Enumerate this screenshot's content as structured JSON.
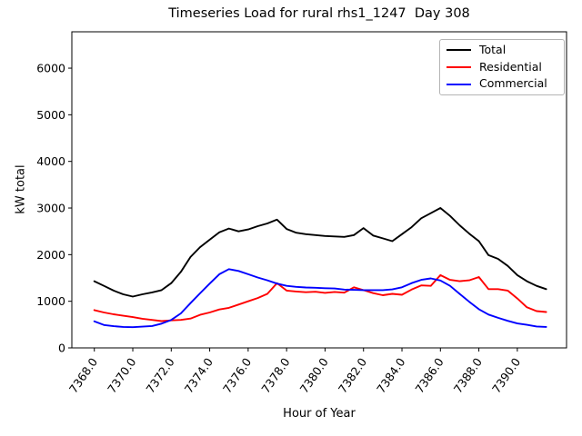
{
  "figure": {
    "background": "#ffffff"
  },
  "chart_data": {
    "type": "line",
    "title": "Timeseries Load for rural rhs1_1247  Day 308",
    "xlabel": "Hour of Year",
    "ylabel": "kW total",
    "grid": false,
    "legend_position": "upper right",
    "xlim": [
      7366.83,
      7392.56
    ],
    "ylim": [
      0,
      6780
    ],
    "x_tick_values": [
      7368,
      7370,
      7372,
      7374,
      7376,
      7378,
      7380,
      7382,
      7384,
      7386,
      7388,
      7390
    ],
    "x_tick_labels": [
      "7368.0",
      "7370.0",
      "7372.0",
      "7374.0",
      "7376.0",
      "7378.0",
      "7380.0",
      "7382.0",
      "7384.0",
      "7386.0",
      "7388.0",
      "7390.0"
    ],
    "y_tick_values": [
      0,
      1000,
      2000,
      3000,
      4000,
      5000,
      6000
    ],
    "y_tick_labels": [
      "0",
      "1000",
      "2000",
      "3000",
      "4000",
      "5000",
      "6000"
    ],
    "x": [
      7368.0,
      7368.5,
      7369.0,
      7369.5,
      7370.0,
      7370.5,
      7371.0,
      7371.5,
      7372.0,
      7372.5,
      7373.0,
      7373.5,
      7374.0,
      7374.5,
      7375.0,
      7375.5,
      7376.0,
      7376.5,
      7377.0,
      7377.5,
      7378.0,
      7378.5,
      7379.0,
      7379.5,
      7380.0,
      7380.5,
      7381.0,
      7381.5,
      7382.0,
      7382.5,
      7383.0,
      7383.5,
      7384.0,
      7384.5,
      7385.0,
      7385.5,
      7386.0,
      7386.5,
      7387.0,
      7387.5,
      7388.0,
      7388.5,
      7389.0,
      7389.5,
      7390.0,
      7390.5,
      7391.0,
      7391.5
    ],
    "series": [
      {
        "name": "Total",
        "color": "#000000",
        "values": [
          1430,
          1330,
          1230,
          1150,
          1100,
          1150,
          1190,
          1240,
          1390,
          1630,
          1950,
          2160,
          2320,
          2480,
          2560,
          2500,
          2540,
          2610,
          2670,
          2750,
          2550,
          2470,
          2440,
          2420,
          2400,
          2390,
          2380,
          2420,
          2570,
          2410,
          2350,
          2290,
          2440,
          2590,
          2780,
          2890,
          3000,
          2830,
          2630,
          2450,
          2290,
          1990,
          1910,
          1760,
          1560,
          1430,
          1330,
          1260
        ]
      },
      {
        "name": "Residential",
        "color": "#ff0000",
        "values": [
          810,
          760,
          720,
          690,
          660,
          625,
          600,
          575,
          590,
          600,
          630,
          710,
          760,
          825,
          860,
          930,
          1000,
          1070,
          1160,
          1390,
          1230,
          1210,
          1195,
          1205,
          1180,
          1200,
          1185,
          1300,
          1240,
          1175,
          1130,
          1160,
          1140,
          1250,
          1340,
          1330,
          1560,
          1460,
          1430,
          1450,
          1520,
          1260,
          1260,
          1230,
          1060,
          870,
          790,
          770
        ]
      },
      {
        "name": "Commercial",
        "color": "#0000ff",
        "values": [
          570,
          490,
          465,
          450,
          445,
          455,
          470,
          520,
          600,
          740,
          960,
          1170,
          1380,
          1580,
          1690,
          1650,
          1580,
          1510,
          1450,
          1380,
          1330,
          1310,
          1295,
          1290,
          1280,
          1275,
          1250,
          1245,
          1240,
          1240,
          1240,
          1255,
          1300,
          1390,
          1460,
          1490,
          1445,
          1330,
          1160,
          990,
          830,
          715,
          645,
          580,
          525,
          495,
          460,
          450
        ]
      }
    ]
  }
}
